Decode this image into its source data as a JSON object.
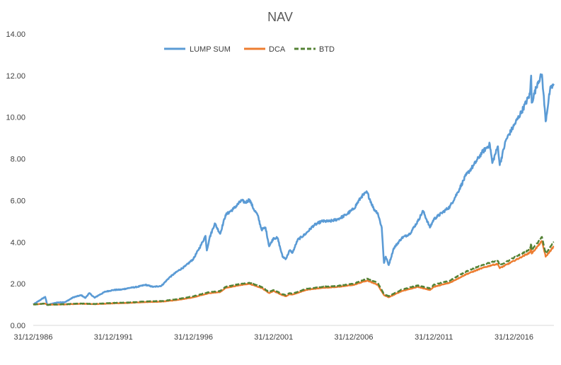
{
  "chart_data": {
    "type": "line",
    "title": "NAV",
    "xlabel": "",
    "ylabel": "",
    "ylim": [
      0,
      14
    ],
    "x_range": [
      "31/12/1986",
      "30/06/2019"
    ],
    "y_ticks": [
      "0.00",
      "2.00",
      "4.00",
      "6.00",
      "8.00",
      "10.00",
      "12.00",
      "14.00"
    ],
    "x_ticks": [
      "31/12/1986",
      "31/12/1991",
      "31/12/1996",
      "31/12/2001",
      "31/12/2006",
      "31/12/2011",
      "31/12/2016"
    ],
    "grid": false,
    "legend": "top-center",
    "colors": {
      "lump": "#5B9BD5",
      "dca": "#ED7D31",
      "btd": "#548235"
    },
    "series": [
      {
        "name": "LUMP SUM",
        "style": "solid",
        "color": "#5B9BD5",
        "x": [
          "1986-12-31",
          "1987-06-30",
          "1987-09-30",
          "1987-11-15",
          "1988-06-30",
          "1988-12-31",
          "1989-06-30",
          "1989-12-31",
          "1990-03-31",
          "1990-06-30",
          "1990-10-31",
          "1991-01-31",
          "1991-06-30",
          "1991-12-31",
          "1992-06-30",
          "1992-12-31",
          "1993-06-30",
          "1993-12-31",
          "1994-06-30",
          "1994-12-31",
          "1995-06-30",
          "1995-12-31",
          "1996-06-30",
          "1996-12-31",
          "1997-06-30",
          "1997-09-30",
          "1997-10-31",
          "1997-12-31",
          "1998-04-30",
          "1998-08-31",
          "1998-12-31",
          "1999-06-30",
          "1999-12-31",
          "2000-03-31",
          "2000-06-30",
          "2000-09-30",
          "2000-12-31",
          "2001-03-31",
          "2001-06-30",
          "2001-09-21",
          "2001-12-31",
          "2002-03-31",
          "2002-07-23",
          "2002-10-09",
          "2002-12-31",
          "2003-03-11",
          "2003-06-30",
          "2003-12-31",
          "2004-06-30",
          "2004-12-31",
          "2005-06-30",
          "2005-12-31",
          "2006-06-30",
          "2006-12-31",
          "2007-06-30",
          "2007-10-31",
          "2008-03-31",
          "2008-06-30",
          "2008-09-30",
          "2008-11-20",
          "2008-12-31",
          "2009-03-09",
          "2009-06-30",
          "2009-12-31",
          "2010-06-30",
          "2010-12-31",
          "2011-04-30",
          "2011-10-03",
          "2011-12-31",
          "2012-06-30",
          "2012-12-31",
          "2013-06-30",
          "2013-12-31",
          "2014-06-30",
          "2014-12-31",
          "2015-06-30",
          "2015-08-25",
          "2015-12-31",
          "2016-02-11",
          "2016-06-30",
          "2016-12-31",
          "2017-06-30",
          "2017-12-31",
          "2018-01-26",
          "2018-02-08",
          "2018-06-30",
          "2018-09-30",
          "2018-12-24",
          "2019-03-31",
          "2019-06-30"
        ],
        "y": [
          1.0,
          1.25,
          1.37,
          0.98,
          1.1,
          1.12,
          1.35,
          1.45,
          1.32,
          1.55,
          1.33,
          1.45,
          1.62,
          1.7,
          1.72,
          1.8,
          1.85,
          1.95,
          1.85,
          1.9,
          2.3,
          2.6,
          2.85,
          3.2,
          3.9,
          4.3,
          3.6,
          4.2,
          4.9,
          4.4,
          5.3,
          5.6,
          6.0,
          5.9,
          6.05,
          5.6,
          5.3,
          4.6,
          4.7,
          3.8,
          4.2,
          4.2,
          3.3,
          3.2,
          3.6,
          3.5,
          4.1,
          4.4,
          4.8,
          5.0,
          5.0,
          5.1,
          5.3,
          5.6,
          6.2,
          6.4,
          5.6,
          5.4,
          4.7,
          3.0,
          3.3,
          2.9,
          3.7,
          4.2,
          4.4,
          5.0,
          5.5,
          4.7,
          5.1,
          5.4,
          5.7,
          6.4,
          7.2,
          7.7,
          8.3,
          8.7,
          7.8,
          8.6,
          7.7,
          8.9,
          9.6,
          10.3,
          11.1,
          12.0,
          10.7,
          11.7,
          12.05,
          9.8,
          11.3,
          11.6
        ]
      },
      {
        "name": "DCA",
        "style": "solid",
        "color": "#ED7D31",
        "x": [
          "1986-12-31",
          "1987-09-30",
          "1987-11-15",
          "1988-12-31",
          "1989-12-31",
          "1990-10-31",
          "1991-12-31",
          "1992-12-31",
          "1993-12-31",
          "1994-12-31",
          "1995-12-31",
          "1996-12-31",
          "1997-12-31",
          "1998-08-31",
          "1998-12-31",
          "1999-12-31",
          "2000-06-30",
          "2001-03-31",
          "2001-09-21",
          "2001-12-31",
          "2002-07-23",
          "2002-10-09",
          "2002-12-31",
          "2003-03-11",
          "2003-12-31",
          "2004-12-31",
          "2005-12-31",
          "2006-12-31",
          "2007-10-31",
          "2008-06-30",
          "2008-11-20",
          "2009-03-09",
          "2009-12-31",
          "2010-12-31",
          "2011-10-03",
          "2011-12-31",
          "2012-12-31",
          "2013-12-31",
          "2014-12-31",
          "2015-08-25",
          "2015-12-31",
          "2016-02-11",
          "2016-12-31",
          "2017-12-31",
          "2018-01-26",
          "2018-02-08",
          "2018-09-30",
          "2018-12-24",
          "2019-06-30"
        ],
        "y": [
          1.0,
          1.05,
          0.99,
          1.01,
          1.04,
          1.02,
          1.06,
          1.08,
          1.12,
          1.14,
          1.22,
          1.35,
          1.55,
          1.6,
          1.8,
          1.95,
          2.0,
          1.8,
          1.55,
          1.65,
          1.45,
          1.4,
          1.5,
          1.48,
          1.7,
          1.8,
          1.85,
          1.95,
          2.15,
          1.95,
          1.45,
          1.35,
          1.65,
          1.85,
          1.7,
          1.85,
          2.05,
          2.45,
          2.75,
          2.9,
          2.95,
          2.75,
          3.1,
          3.5,
          3.8,
          3.45,
          4.05,
          3.3,
          3.8
        ]
      },
      {
        "name": "BTD",
        "style": "dashed",
        "color": "#548235",
        "x": [
          "1986-12-31",
          "1987-09-30",
          "1987-11-15",
          "1988-12-31",
          "1989-12-31",
          "1990-10-31",
          "1991-12-31",
          "1992-12-31",
          "1993-12-31",
          "1994-12-31",
          "1995-12-31",
          "1996-12-31",
          "1997-12-31",
          "1998-08-31",
          "1998-12-31",
          "1999-12-31",
          "2000-06-30",
          "2001-03-31",
          "2001-09-21",
          "2001-12-31",
          "2002-07-23",
          "2002-10-09",
          "2002-12-31",
          "2003-03-11",
          "2003-12-31",
          "2004-12-31",
          "2005-12-31",
          "2006-12-31",
          "2007-10-31",
          "2008-06-30",
          "2008-11-20",
          "2009-03-09",
          "2009-12-31",
          "2010-12-31",
          "2011-10-03",
          "2011-12-31",
          "2012-12-31",
          "2013-12-31",
          "2014-12-31",
          "2015-08-25",
          "2015-12-31",
          "2016-02-11",
          "2016-12-31",
          "2017-12-31",
          "2018-01-26",
          "2018-02-08",
          "2018-09-30",
          "2018-12-24",
          "2019-06-30"
        ],
        "y": [
          1.0,
          1.05,
          0.99,
          1.02,
          1.05,
          1.03,
          1.08,
          1.1,
          1.15,
          1.17,
          1.26,
          1.4,
          1.6,
          1.65,
          1.85,
          2.0,
          2.05,
          1.85,
          1.6,
          1.7,
          1.5,
          1.45,
          1.55,
          1.52,
          1.75,
          1.85,
          1.9,
          2.0,
          2.25,
          2.05,
          1.5,
          1.4,
          1.72,
          1.92,
          1.78,
          1.95,
          2.15,
          2.58,
          2.9,
          3.05,
          3.1,
          2.88,
          3.25,
          3.65,
          3.95,
          3.6,
          4.25,
          3.45,
          4.0
        ]
      }
    ]
  }
}
